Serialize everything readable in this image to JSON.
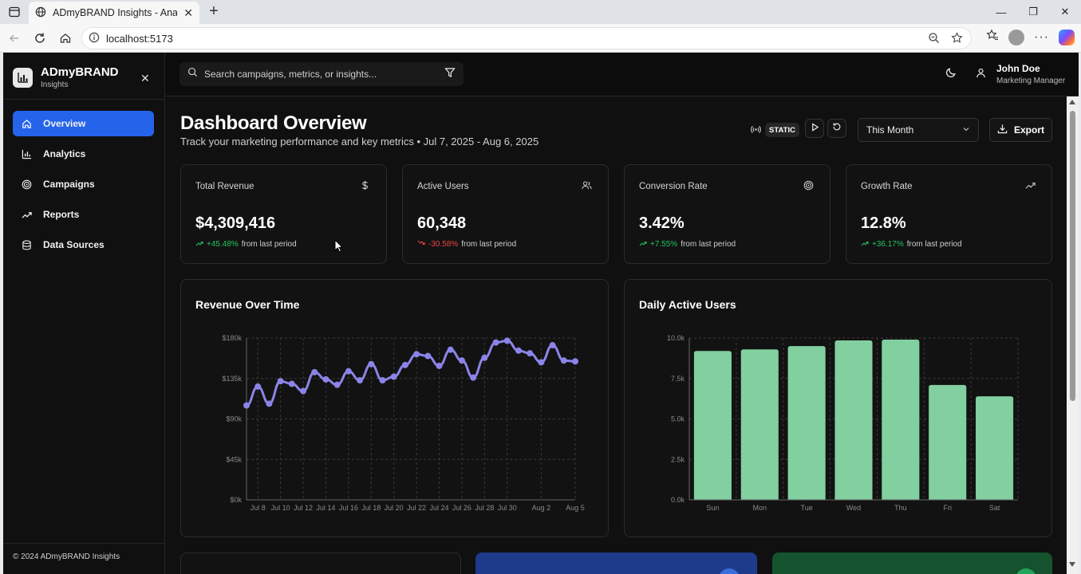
{
  "browser": {
    "tab_title": "ADmyBRAND Insights - Analytics",
    "url": "localhost:5173"
  },
  "sidebar": {
    "brand_name": "ADmyBRAND",
    "brand_sub": "Insights",
    "items": [
      {
        "label": "Overview",
        "icon": "home-icon",
        "active": true
      },
      {
        "label": "Analytics",
        "icon": "bar-chart-icon",
        "active": false
      },
      {
        "label": "Campaigns",
        "icon": "target-icon",
        "active": false
      },
      {
        "label": "Reports",
        "icon": "trending-up-icon",
        "active": false
      },
      {
        "label": "Data Sources",
        "icon": "database-icon",
        "active": false
      }
    ],
    "footer": "© 2024 ADmyBRAND Insights"
  },
  "header": {
    "search_placeholder": "Search campaigns, metrics, or insights...",
    "user_name": "John Doe",
    "user_role": "Marketing Manager"
  },
  "page": {
    "title": "Dashboard Overview",
    "subtitle": "Track your marketing performance and key metrics • Jul 7, 2025 - Aug 6, 2025",
    "mode_badge": "STATIC",
    "range_select": "This Month",
    "export_label": "Export"
  },
  "metrics": [
    {
      "label": "Total Revenue",
      "value": "$4,309,416",
      "change": "+45.48%",
      "direction": "up",
      "suffix": "from last period",
      "icon": "dollar-icon"
    },
    {
      "label": "Active Users",
      "value": "60,348",
      "change": "-30.58%",
      "direction": "down",
      "suffix": "from last period",
      "icon": "users-icon"
    },
    {
      "label": "Conversion Rate",
      "value": "3.42%",
      "change": "+7.55%",
      "direction": "up",
      "suffix": "from last period",
      "icon": "target-icon"
    },
    {
      "label": "Growth Rate",
      "value": "12.8%",
      "change": "+36.17%",
      "direction": "up",
      "suffix": "from last period",
      "icon": "trending-up-icon"
    }
  ],
  "colors": {
    "accent": "#2563eb",
    "line": "#8b84e8",
    "bar": "#82cfa0",
    "positive": "#22c55e",
    "negative": "#ef4444"
  },
  "chart_data": [
    {
      "type": "line",
      "title": "Revenue Over Time",
      "ylim": [
        0,
        180000
      ],
      "yticks": [
        "$0k",
        "$45k",
        "$90k",
        "$135k",
        "$180k"
      ],
      "xtick_labels": [
        "Jul 8",
        "Jul 10",
        "Jul 12",
        "Jul 14",
        "Jul 16",
        "Jul 18",
        "Jul 20",
        "Jul 22",
        "Jul 24",
        "Jul 26",
        "Jul 28",
        "Jul 30",
        "Aug 2",
        "Aug 5"
      ],
      "xtick_positions": [
        1,
        3,
        5,
        7,
        9,
        11,
        13,
        15,
        17,
        19,
        21,
        23,
        26,
        29
      ],
      "values": [
        105000,
        126000,
        107000,
        132000,
        129000,
        121000,
        142000,
        134000,
        128000,
        143000,
        133000,
        151000,
        133000,
        137000,
        150000,
        162000,
        160000,
        149000,
        167000,
        155000,
        136000,
        158000,
        175000,
        177000,
        166000,
        163000,
        153000,
        172000,
        155000,
        154000
      ],
      "grid": true
    },
    {
      "type": "bar",
      "title": "Daily Active Users",
      "categories": [
        "Sun",
        "Mon",
        "Tue",
        "Wed",
        "Thu",
        "Fri",
        "Sat"
      ],
      "values": [
        9200,
        9300,
        9500,
        9850,
        9900,
        7100,
        6400
      ],
      "ylim": [
        0,
        10000
      ],
      "yticks": [
        "0.0k",
        "2.5k",
        "5.0k",
        "7.5k",
        "10.0k"
      ],
      "grid": true
    }
  ]
}
